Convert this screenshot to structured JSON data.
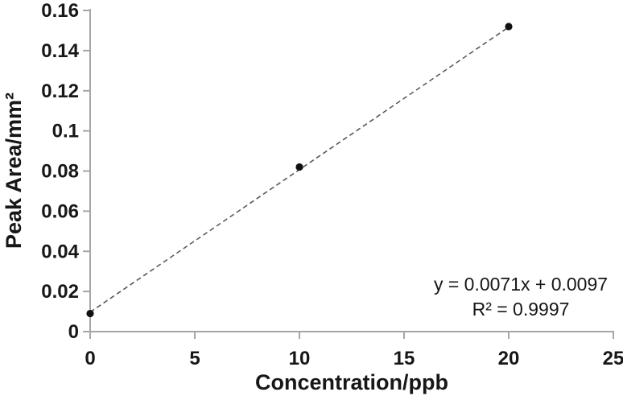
{
  "figure": {
    "background": "#ffffff",
    "axis_color": "#a6a6a6",
    "text_color": "#171717",
    "point_color": "#111111",
    "trendline_color": "#5a5a5a"
  },
  "chart_data": {
    "type": "scatter",
    "title": "",
    "xlabel": "Concentration/ppb",
    "ylabel": "Peak Area/mm²",
    "x": [
      0,
      10,
      20
    ],
    "y": [
      0.009,
      0.082,
      0.152
    ],
    "xlim": [
      0,
      25
    ],
    "ylim": [
      0,
      0.16
    ],
    "x_ticks": [
      0,
      5,
      10,
      15,
      20,
      25
    ],
    "y_tick_values": [
      0,
      0.02,
      0.04,
      0.06,
      0.08,
      0.1,
      0.12,
      0.14,
      0.16
    ],
    "y_tick_labels": [
      "0",
      "0.02",
      "0.04",
      "0.06",
      "0.08",
      "0.1",
      "0.12",
      "0.14",
      "0.16"
    ],
    "grid": false,
    "legend": null,
    "marker": "filled-circle",
    "trendline": {
      "style": "dashed",
      "slope": 0.0071,
      "intercept": 0.0097,
      "x_start": 0,
      "x_end": 20
    },
    "annotation": {
      "equation": "y = 0.0071x + 0.0097",
      "r2": "R² = 0.9997"
    }
  }
}
